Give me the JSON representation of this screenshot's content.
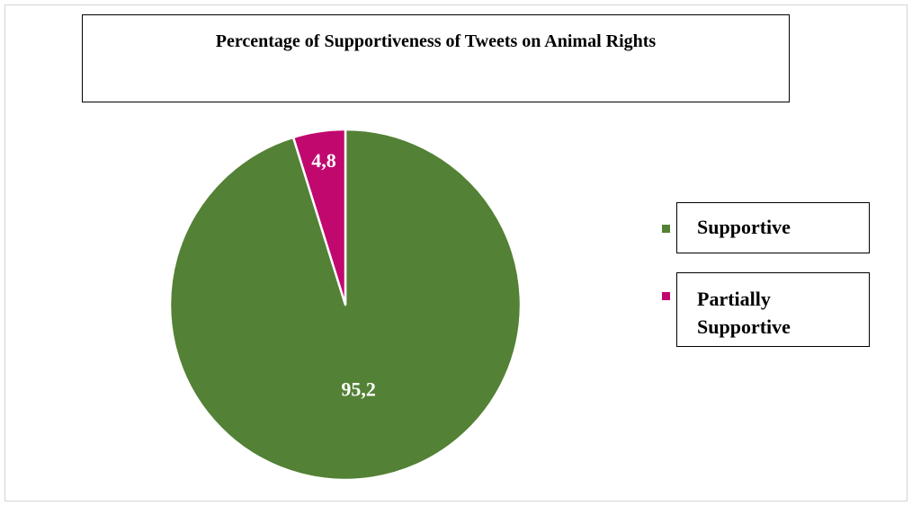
{
  "chart_data": {
    "type": "pie",
    "title": "Percentage of Supportiveness of Tweets on Animal Rights",
    "categories": [
      "Supportive",
      "Partially Supportive"
    ],
    "values": [
      95.2,
      4.8
    ],
    "value_labels": [
      "95,2",
      "4,8"
    ],
    "colors": [
      "#538135",
      "#C0086F"
    ],
    "legend_position": "right",
    "legend": [
      {
        "lines": [
          "Supportive"
        ],
        "color": "#538135"
      },
      {
        "lines": [
          "Partially",
          "Supportive"
        ],
        "color": "#C0086F"
      }
    ]
  }
}
